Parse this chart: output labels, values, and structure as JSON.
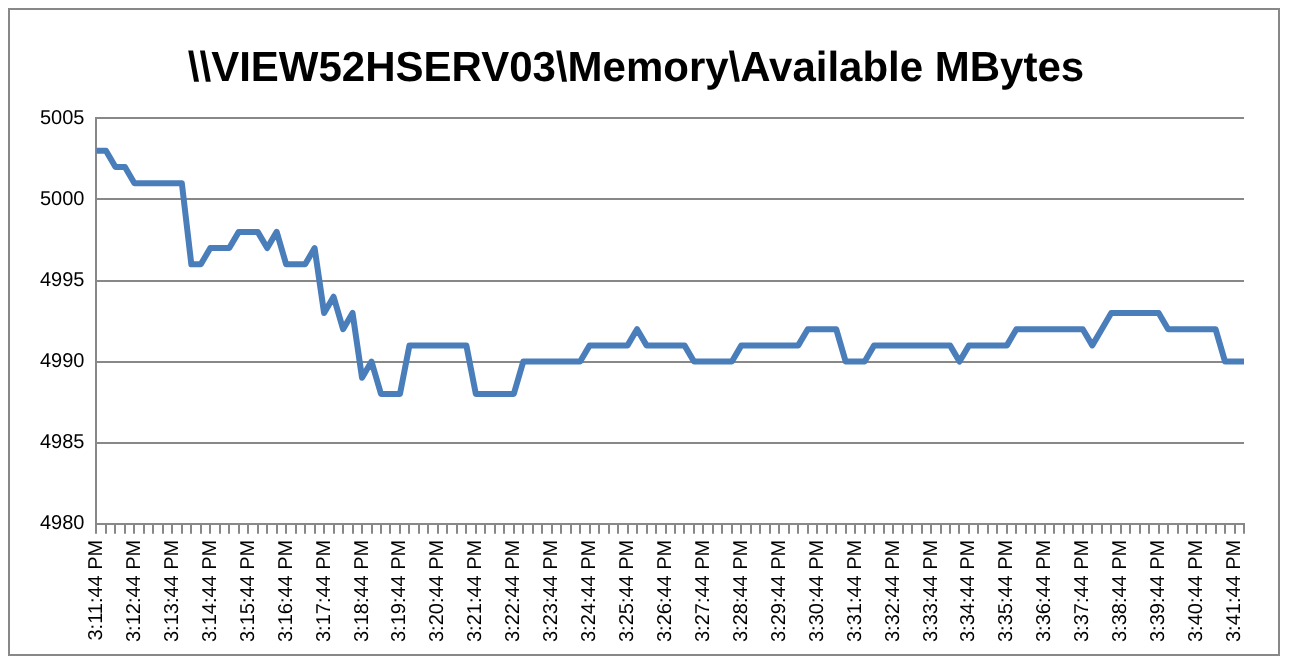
{
  "chart_data": {
    "type": "line",
    "title": "\\\\VIEW52HSERV03\\Memory\\Available MBytes",
    "categories": [
      "3:11:44 PM",
      null,
      null,
      null,
      "3:12:44 PM",
      null,
      null,
      null,
      "3:13:44 PM",
      null,
      null,
      null,
      "3:14:44 PM",
      null,
      null,
      null,
      "3:15:44 PM",
      null,
      null,
      null,
      "3:16:44 PM",
      null,
      null,
      null,
      "3:17:44 PM",
      null,
      null,
      null,
      "3:18:44 PM",
      null,
      null,
      null,
      "3:19:44 PM",
      null,
      null,
      null,
      "3:20:44 PM",
      null,
      null,
      null,
      "3:21:44 PM",
      null,
      null,
      null,
      "3:22:44 PM",
      null,
      null,
      null,
      "3:23:44 PM",
      null,
      null,
      null,
      "3:24:44 PM",
      null,
      null,
      null,
      "3:25:44 PM",
      null,
      null,
      null,
      "3:26:44 PM",
      null,
      null,
      null,
      "3:27:44 PM",
      null,
      null,
      null,
      "3:28:44 PM",
      null,
      null,
      null,
      "3:29:44 PM",
      null,
      null,
      null,
      "3:30:44 PM",
      null,
      null,
      null,
      "3:31:44 PM",
      null,
      null,
      null,
      "3:32:44 PM",
      null,
      null,
      null,
      "3:33:44 PM",
      null,
      null,
      null,
      "3:34:44 PM",
      null,
      null,
      null,
      "3:35:44 PM",
      null,
      null,
      null,
      "3:36:44 PM",
      null,
      null,
      null,
      "3:37:44 PM",
      null,
      null,
      null,
      "3:38:44 PM",
      null,
      null,
      null,
      "3:39:44 PM",
      null,
      null,
      null,
      "3:40:44 PM",
      null,
      null,
      null,
      "3:41:44 PM",
      null
    ],
    "series": [
      {
        "color": "#4a7ebb",
        "values": [
          5003,
          5003,
          5002,
          5002,
          5001,
          5001,
          5001,
          5001,
          5001,
          5001,
          4996,
          4996,
          4997,
          4997,
          4997,
          4998,
          4998,
          4998,
          4997,
          4998,
          4996,
          4996,
          4996,
          4997,
          4993,
          4994,
          4992,
          4993,
          4989,
          4990,
          4988,
          4988,
          4988,
          4991,
          4991,
          4991,
          4991,
          4991,
          4991,
          4991,
          4988,
          4988,
          4988,
          4988,
          4988,
          4990,
          4990,
          4990,
          4990,
          4990,
          4990,
          4990,
          4991,
          4991,
          4991,
          4991,
          4991,
          4992,
          4991,
          4991,
          4991,
          4991,
          4991,
          4990,
          4990,
          4990,
          4990,
          4990,
          4991,
          4991,
          4991,
          4991,
          4991,
          4991,
          4991,
          4992,
          4992,
          4992,
          4992,
          4990,
          4990,
          4990,
          4991,
          4991,
          4991,
          4991,
          4991,
          4991,
          4991,
          4991,
          4991,
          4990,
          4991,
          4991,
          4991,
          4991,
          4991,
          4992,
          4992,
          4992,
          4992,
          4992,
          4992,
          4992,
          4992,
          4991,
          4992,
          4993,
          4993,
          4993,
          4993,
          4993,
          4993,
          4992,
          4992,
          4992,
          4992,
          4992,
          4992,
          4990,
          4990,
          4990
        ]
      }
    ],
    "ylim": [
      4980,
      5005
    ],
    "yticks": [
      4980,
      4985,
      4990,
      4995,
      5000,
      5005
    ],
    "grid": "y",
    "legend": false,
    "marker": "none",
    "line_style": "solid"
  }
}
